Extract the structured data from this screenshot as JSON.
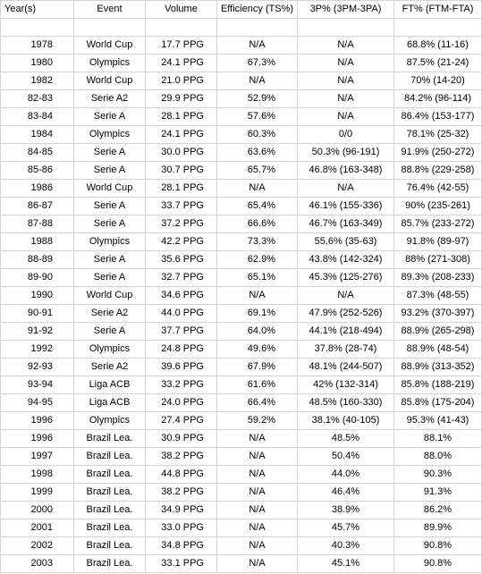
{
  "table": {
    "headers": [
      "Year(s)",
      "Event",
      "Volume",
      "Efficiency (TS%)",
      "3P% (3PM-3PA)",
      "FT% (FTM-FTA)"
    ],
    "rows": [
      [
        "",
        "",
        "",
        "",
        "",
        ""
      ],
      [
        "1978",
        "World Cup",
        "17.7 PPG",
        "N/A",
        "N/A",
        "68.8% (11-16)"
      ],
      [
        "1980",
        "Olympics",
        "24.1 PPG",
        "67.3%",
        "N/A",
        "87.5% (21-24)"
      ],
      [
        "1982",
        "World Cup",
        "21.0 PPG",
        "N/A",
        "N/A",
        "70% (14-20)"
      ],
      [
        "82-83",
        "Serie A2",
        "29.9 PPG",
        "52.9%",
        "N/A",
        "84.2% (96-114)"
      ],
      [
        "83-84",
        "Serie A",
        "28.1 PPG",
        "57.6%",
        "N/A",
        "86.4% (153-177)"
      ],
      [
        "1984",
        "Olympics",
        "24.1 PPG",
        "60.3%",
        "0/0",
        "78.1% (25-32)"
      ],
      [
        "84-85",
        "Serie A",
        "30.0 PPG",
        "63.6%",
        "50.3% (96-191)",
        "91.9% (250-272)"
      ],
      [
        "85-86",
        "Serie A",
        "30.7 PPG",
        "65.7%",
        "46.8% (163-348)",
        "88.8% (229-258)"
      ],
      [
        "1986",
        "World Cup",
        "28.1 PPG",
        "N/A",
        "N/A",
        "76.4% (42-55)"
      ],
      [
        "86-87",
        "Serie A",
        "33.7 PPG",
        "65.4%",
        "46.1% (155-336)",
        "90% (235-261)"
      ],
      [
        "87-88",
        "Serie A",
        "37.2 PPG",
        "66.6%",
        "46.7% (163-349)",
        "85.7% (233-272)"
      ],
      [
        "1988",
        "Olympics",
        "42.2 PPG",
        "73.3%",
        "55.6% (35-63)",
        "91.8% (89-97)"
      ],
      [
        "88-89",
        "Serie A",
        "35.6 PPG",
        "62.9%",
        "43.8% (142-324)",
        "88% (271-308)"
      ],
      [
        "89-90",
        "Serie A",
        "32.7 PPG",
        "65.1%",
        "45.3% (125-276)",
        "89.3% (208-233)"
      ],
      [
        "1990",
        "World Cup",
        "34.6 PPG",
        "N/A",
        "N/A",
        "87.3% (48-55)"
      ],
      [
        "90-91",
        "Serie A2",
        "44.0 PPG",
        "69.1%",
        "47.9% (252-526)",
        "93.2% (370-397)"
      ],
      [
        "91-92",
        "Serie A",
        "37.7 PPG",
        "64.0%",
        "44.1% (218-494)",
        "88.9% (265-298)"
      ],
      [
        "1992",
        "Olympics",
        "24.8 PPG",
        "49.6%",
        "37.8% (28-74)",
        "88.9% (48-54)"
      ],
      [
        "92-93",
        "Serie A2",
        "39.6 PPG",
        "67.9%",
        "48.1% (244-507)",
        "88.9% (313-352)"
      ],
      [
        "93-94",
        "Liga ACB",
        "33.2 PPG",
        "61.6%",
        "42% (132-314)",
        "85.8% (188-219)"
      ],
      [
        "94-95",
        "Liga ACB",
        "24.0 PPG",
        "66.4%",
        "48.5% (160-330)",
        "85.8% (175-204)"
      ],
      [
        "1996",
        "Olympics",
        "27.4 PPG",
        "59.2%",
        "38.1% (40-105)",
        "95.3% (41-43)"
      ],
      [
        "1996",
        "Brazil Lea.",
        "30.9 PPG",
        "N/A",
        "48.5%",
        "88.1%"
      ],
      [
        "1997",
        "Brazil Lea.",
        "38.2 PPG",
        "N/A",
        "50.4%",
        "88.0%"
      ],
      [
        "1998",
        "Brazil Lea.",
        "44.8 PPG",
        "N/A",
        "44.0%",
        "90.3%"
      ],
      [
        "1999",
        "Brazil Lea.",
        "38.2 PPG",
        "N/A",
        "46.4%",
        "91.3%"
      ],
      [
        "2000",
        "Brazil Lea.",
        "34.9 PPG",
        "N/A",
        "38.9%",
        "86.2%"
      ],
      [
        "2001",
        "Brazil Lea.",
        "33.0 PPG",
        "N/A",
        "45.7%",
        "89.9%"
      ],
      [
        "2002",
        "Brazil Lea.",
        "34.8 PPG",
        "N/A",
        "40.3%",
        "90.8%"
      ],
      [
        "2003",
        "Brazil Lea.",
        "33.1 PPG",
        "N/A",
        "45.1%",
        "90.8%"
      ]
    ]
  }
}
